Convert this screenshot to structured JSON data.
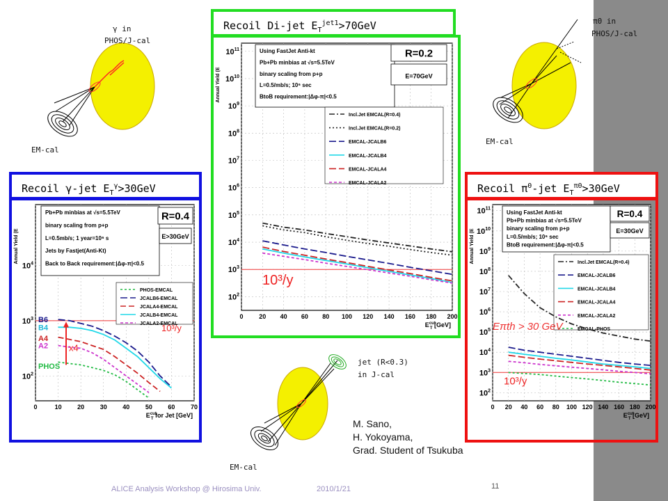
{
  "slide": {
    "footer_left": "ALICE Analysis Workshop @ Hirosima Univ.",
    "footer_date": "2010/1/21",
    "page_number": "11",
    "credits": [
      "M. Sano,",
      "H. Yokoyama,",
      "Grad. Student of Tsukuba"
    ]
  },
  "diagrams": {
    "gamma": {
      "label_particle": "γ in",
      "label_detector": "PHOS/J-cal",
      "label_emcal": "EM-cal"
    },
    "dijet": {
      "label_particle": "jet (R<0.3)",
      "label_detector": "in J-cal",
      "label_emcal": "EM-cal"
    },
    "pi0": {
      "label_particle": "π0 in",
      "label_detector": "PHOS/J-cal",
      "label_emcal": "EM-cal"
    }
  },
  "panels": {
    "dijet": {
      "title": "Recoil Di-jet E",
      "sub": "T",
      "sup": "jet1",
      "title_tail": ">70GeV",
      "border": "#22dd22"
    },
    "gamma": {
      "title": "Recoil γ-jet E",
      "sub": "T",
      "sup": "γ",
      "title_tail": ">30GeV",
      "border": "#1010e0"
    },
    "pi0": {
      "title": "Recoil π",
      "sup0": "0",
      "title_mid": "-jet E",
      "sub": "T",
      "sup": "π0",
      "title_tail": ">30GeV",
      "border": "#ee1111"
    }
  },
  "chart_data": [
    {
      "id": "dijet",
      "type": "line",
      "ylabel": "Annual Yield (E",
      "xlabel": "E",
      "xlabel_sub": "T",
      "xlabel_sup": "cut",
      "xlabel_unit": " [GeV]",
      "xlim": [
        0,
        200
      ],
      "ylim_log10": [
        1.5,
        11.3
      ],
      "xticks": [
        "0",
        "20",
        "40",
        "60",
        "80",
        "100",
        "120",
        "140",
        "160",
        "180",
        "200"
      ],
      "yticks": [
        {
          "v": 2,
          "t": "10"
        },
        {
          "v": 3,
          "t": "10"
        },
        {
          "v": 4,
          "t": "10"
        },
        {
          "v": 5,
          "t": "10"
        },
        {
          "v": 6,
          "t": "10"
        },
        {
          "v": 7,
          "t": "10"
        },
        {
          "v": 8,
          "t": "10"
        },
        {
          "v": 9,
          "t": "10"
        },
        {
          "v": 10,
          "t": "10"
        },
        {
          "v": 11,
          "t": "10"
        }
      ],
      "info_lines": [
        "Using FastJet Anti-kt",
        "Pb+Pb minbias at √s=5.5TeV",
        "binary scaling from p+p",
        "L=0.5/mb/s; 10⁶ sec",
        "BtoB requirement:|Δφ-π|<0.5"
      ],
      "r_label": "R=0.2",
      "eth_label": "E=70GeV",
      "reference": {
        "log10": 3,
        "text": "10³/y"
      },
      "series": [
        {
          "name": "Incl.Jet EMCAL(R=0.4)",
          "color": "#222222",
          "dash": "8,3,2,3",
          "x": [
            20,
            40,
            60,
            80,
            100,
            120,
            140,
            160,
            180,
            200
          ],
          "log10": [
            4.7,
            4.55,
            4.45,
            4.32,
            4.2,
            4.08,
            3.97,
            3.86,
            3.75,
            3.65
          ]
        },
        {
          "name": "Incl.Jet EMCAL(R=0.2)",
          "color": "#222222",
          "dash": "2,3",
          "x": [
            20,
            40,
            60,
            80,
            100,
            120,
            140,
            160,
            180,
            200
          ],
          "log10": [
            4.6,
            4.45,
            4.35,
            4.2,
            4.07,
            3.95,
            3.85,
            3.73,
            3.62,
            3.52
          ]
        },
        {
          "name": "EMCAL-JCALB6",
          "color": "#1a1a8c",
          "dash": "10,4",
          "x": [
            20,
            40,
            60,
            80,
            100,
            120,
            140,
            160,
            180,
            200
          ],
          "log10": [
            4.05,
            3.9,
            3.75,
            3.62,
            3.48,
            3.35,
            3.22,
            3.08,
            2.95,
            2.82
          ]
        },
        {
          "name": "EMCAL-JCALB4",
          "color": "#22d8e8",
          "dash": "",
          "x": [
            20,
            40,
            60,
            80,
            100,
            120,
            140,
            160,
            180,
            200
          ],
          "log10": [
            3.75,
            3.6,
            3.46,
            3.33,
            3.2,
            3.06,
            2.93,
            2.8,
            2.67,
            2.52
          ]
        },
        {
          "name": "EMCAL-JCALA4",
          "color": "#cc2222",
          "dash": "10,4",
          "x": [
            20,
            40,
            60,
            80,
            100,
            120,
            140,
            160,
            180,
            200
          ],
          "log10": [
            3.82,
            3.66,
            3.52,
            3.38,
            3.25,
            3.11,
            2.98,
            2.85,
            2.71,
            2.58
          ]
        },
        {
          "name": "EMCAL-JCALA2",
          "color": "#cc33cc",
          "dash": "4,3",
          "x": [
            20,
            40,
            60,
            80,
            100,
            120,
            140,
            160,
            180,
            200
          ],
          "log10": [
            3.6,
            3.48,
            3.36,
            3.23,
            3.11,
            2.99,
            2.87,
            2.75,
            2.62,
            2.5
          ]
        }
      ]
    },
    {
      "id": "gamma",
      "type": "line",
      "ylabel": "Annual Yield (E",
      "xlabel": "E",
      "xlabel_sub": "T",
      "xlabel_sup": "cut",
      "xlabel_unit": " for Jet [GeV]",
      "xlim": [
        0,
        70
      ],
      "ylim_log10": [
        1.55,
        5.1
      ],
      "xticks": [
        "0",
        "10",
        "20",
        "30",
        "40",
        "50",
        "60",
        "70"
      ],
      "yticks": [
        {
          "v": 2,
          "t": "10"
        },
        {
          "v": 3,
          "t": "10"
        },
        {
          "v": 4,
          "t": "10"
        }
      ],
      "info_lines": [
        "Pb+Pb minbias at √s=5.5TeV",
        "binary scaling from p+p",
        "L=0.5mb/s; 1 year=10⁶ s",
        "Jets by Fastjet(Anti-Kt)",
        "Back to Back requirement:|Δφ-π|<0.5"
      ],
      "r_label": "R=0.4",
      "eth_label": "E>30GeV",
      "reference": {
        "log10": 3,
        "text": "10³/y"
      },
      "curve_labels": [
        {
          "text": "B6",
          "color": "#1a1a8c",
          "log10": 3.02
        },
        {
          "text": "B4",
          "color": "#1fb8d8",
          "log10": 2.88
        },
        {
          "text": "A4",
          "color": "#cc2222",
          "log10": 2.68
        },
        {
          "text": "A2",
          "color": "#cc33cc",
          "log10": 2.55
        },
        {
          "text": "PHOS",
          "color": "#22bb44",
          "log10": 2.18
        }
      ],
      "arrow_label": "x4",
      "series": [
        {
          "name": "PHOS-EMCAL",
          "color": "#22bb44",
          "dash": "3,3",
          "x": [
            10,
            20,
            25,
            30,
            35,
            40,
            45,
            50
          ],
          "log10": [
            2.25,
            2.2,
            2.15,
            2.1,
            2.02,
            1.9,
            1.75,
            1.6
          ]
        },
        {
          "name": "JCALB6-EMCAL",
          "color": "#1a1a8c",
          "dash": "10,4",
          "x": [
            10,
            15,
            20,
            25,
            30,
            35,
            40,
            45,
            50,
            55,
            60
          ],
          "log10": [
            3.02,
            3.0,
            2.95,
            2.9,
            2.82,
            2.72,
            2.6,
            2.45,
            2.25,
            2.0,
            1.8
          ]
        },
        {
          "name": "JCALA4-EMCAL",
          "color": "#cc2222",
          "dash": "8,4",
          "x": [
            10,
            15,
            20,
            25,
            30,
            35,
            40,
            45,
            50,
            55
          ],
          "log10": [
            2.7,
            2.66,
            2.62,
            2.55,
            2.48,
            2.35,
            2.2,
            2.05,
            1.88,
            1.72
          ]
        },
        {
          "name": "JCALB4-EMCAL",
          "color": "#22d8e8",
          "dash": "",
          "x": [
            10,
            15,
            20,
            25,
            30,
            35,
            40,
            45,
            50,
            55,
            60
          ],
          "log10": [
            2.88,
            2.88,
            2.86,
            2.82,
            2.75,
            2.65,
            2.5,
            2.35,
            2.15,
            1.95,
            1.78
          ]
        },
        {
          "name": "JCALA2-EMCAL",
          "color": "#cc33cc",
          "dash": "4,3",
          "x": [
            10,
            15,
            20,
            25,
            30,
            35,
            40,
            45,
            50
          ],
          "log10": [
            2.55,
            2.52,
            2.5,
            2.42,
            2.3,
            2.15,
            2.0,
            1.85,
            1.7
          ]
        }
      ]
    },
    {
      "id": "pi0",
      "type": "line",
      "ylabel": "Annual Yield (E",
      "xlabel": "E",
      "xlabel_sub": "T",
      "xlabel_sup": "cut",
      "xlabel_unit": " [GeV]",
      "xlim": [
        0,
        200
      ],
      "ylim_log10": [
        1.6,
        11.3
      ],
      "xticks": [
        "0",
        "20",
        "40",
        "60",
        "80",
        "100",
        "120",
        "140",
        "160",
        "180",
        "200"
      ],
      "yticks": [
        {
          "v": 2,
          "t": "10"
        },
        {
          "v": 3,
          "t": "10"
        },
        {
          "v": 4,
          "t": "10"
        },
        {
          "v": 5,
          "t": "10"
        },
        {
          "v": 6,
          "t": "10"
        },
        {
          "v": 7,
          "t": "10"
        },
        {
          "v": 8,
          "t": "10"
        },
        {
          "v": 9,
          "t": "10"
        },
        {
          "v": 10,
          "t": "10"
        },
        {
          "v": 11,
          "t": "10"
        }
      ],
      "info_lines": [
        "Using FastJet Anti-kt",
        "Pb+Pb minbias at √s=5.5TeV",
        "binary scaling from p+p",
        "L=0.5/mb/s; 10⁶ sec",
        "BtoB requirement:|Δφ-π|<0.5"
      ],
      "r_label": "R=0.4",
      "eth_label": "E=30GeV",
      "reference": {
        "log10": 3,
        "text": "10³/y"
      },
      "annotation": "Eπth > 30 GeV",
      "series": [
        {
          "name": "Incl.Jet EMCAL(R=0.4)",
          "color": "#222222",
          "dash": "8,3,2,3",
          "x": [
            20,
            40,
            60,
            80,
            100,
            120,
            140,
            160,
            180,
            200
          ],
          "log10": [
            7.8,
            6.9,
            6.2,
            5.75,
            5.4,
            5.15,
            4.95,
            4.8,
            4.65,
            4.55
          ]
        },
        {
          "name": "EMCAL-JCALB6",
          "color": "#1a1a8c",
          "dash": "10,4",
          "x": [
            20,
            40,
            60,
            80,
            100,
            120,
            140,
            160,
            180,
            200
          ],
          "log10": [
            4.25,
            4.1,
            4.0,
            3.9,
            3.8,
            3.7,
            3.6,
            3.5,
            3.42,
            3.35
          ]
        },
        {
          "name": "EMCAL-JCALB4",
          "color": "#22d8e8",
          "dash": "",
          "x": [
            20,
            40,
            60,
            80,
            100,
            120,
            140,
            160,
            180,
            200
          ],
          "log10": [
            4.0,
            3.9,
            3.8,
            3.7,
            3.62,
            3.52,
            3.42,
            3.35,
            3.28,
            3.2
          ]
        },
        {
          "name": "EMCAL-JCALA4",
          "color": "#cc2222",
          "dash": "10,4",
          "x": [
            20,
            40,
            60,
            80,
            100,
            120,
            140,
            160,
            180,
            200
          ],
          "log10": [
            3.85,
            3.75,
            3.66,
            3.58,
            3.5,
            3.42,
            3.35,
            3.28,
            3.2,
            3.12
          ]
        },
        {
          "name": "EMCAL-JCALA2",
          "color": "#cc33cc",
          "dash": "4,3",
          "x": [
            20,
            40,
            60,
            80,
            100,
            120,
            140,
            160,
            180,
            200
          ],
          "log10": [
            3.55,
            3.48,
            3.4,
            3.33,
            3.26,
            3.2,
            3.13,
            3.06,
            3.0,
            2.93
          ]
        },
        {
          "name": "EMCAL-PHOS",
          "color": "#22bb44",
          "dash": "3,3",
          "x": [
            20,
            40,
            60,
            80,
            100,
            120,
            140,
            160,
            180,
            200
          ],
          "log10": [
            3.0,
            2.95,
            2.9,
            2.82,
            2.75,
            2.68,
            2.6,
            2.52,
            2.45,
            2.38
          ]
        }
      ]
    }
  ]
}
